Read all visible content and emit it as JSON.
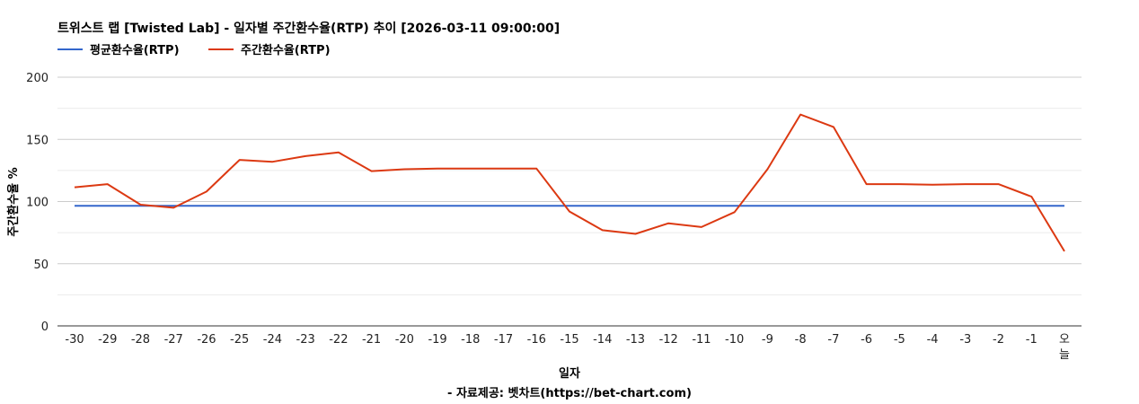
{
  "chart_data": {
    "type": "line",
    "title": "트위스트 랩 [Twisted Lab] - 일자별 주간환수율(RTP) 추이 [2026-03-11 09:00:00]",
    "xlabel": "일자",
    "ylabel": "주간환수율 %",
    "source": "- 자료제공: 벳차트(https://bet-chart.com)",
    "ylim": [
      0,
      200
    ],
    "yticks": [
      "0",
      "50",
      "100",
      "150",
      "200"
    ],
    "categories": [
      "-30",
      "-29",
      "-28",
      "-27",
      "-26",
      "-25",
      "-24",
      "-23",
      "-22",
      "-21",
      "-20",
      "-19",
      "-18",
      "-17",
      "-16",
      "-15",
      "-14",
      "-13",
      "-12",
      "-11",
      "-10",
      "-9",
      "-8",
      "-7",
      "-6",
      "-5",
      "-4",
      "-3",
      "-2",
      "-1",
      "오늘"
    ],
    "legend_position": "top-left",
    "grid": true,
    "series": [
      {
        "name": "평균환수율(RTP)",
        "color": "#3366cc",
        "values": [
          96.5,
          96.5,
          96.5,
          96.5,
          96.5,
          96.5,
          96.5,
          96.5,
          96.5,
          96.5,
          96.5,
          96.5,
          96.5,
          96.5,
          96.5,
          96.5,
          96.5,
          96.5,
          96.5,
          96.5,
          96.5,
          96.5,
          96.5,
          96.5,
          96.5,
          96.5,
          96.5,
          96.5,
          96.5,
          96.5,
          96.5
        ]
      },
      {
        "name": "주간환수율(RTP)",
        "color": "#dc3912",
        "values": [
          111.5,
          114,
          97.5,
          95,
          108,
          133.5,
          132,
          136.5,
          139.5,
          124.5,
          126,
          126.5,
          126.5,
          126.5,
          126.5,
          92,
          77,
          74,
          82.5,
          79.5,
          91.5,
          126,
          170,
          160,
          114,
          114,
          113.5,
          114,
          114,
          104,
          60
        ]
      }
    ]
  }
}
